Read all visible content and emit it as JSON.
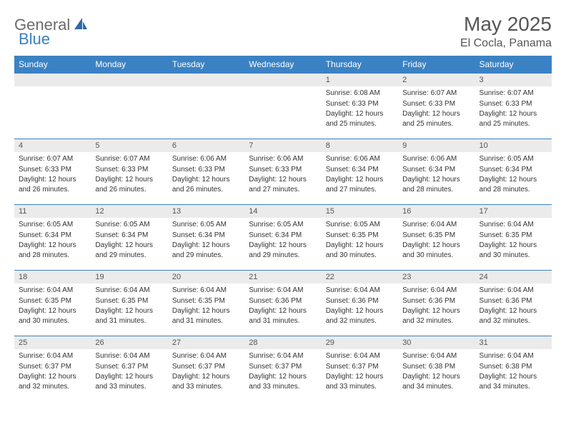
{
  "logo": {
    "text1": "General",
    "text2": "Blue"
  },
  "title": "May 2025",
  "location": "El Cocla, Panama",
  "colors": {
    "header_bg": "#3b82c4",
    "header_text": "#ffffff",
    "daynum_bg": "#ebebeb",
    "border": "#3b82c4",
    "logo_gray": "#6b6b6b",
    "logo_blue": "#3b7fc4"
  },
  "weekdays": [
    "Sunday",
    "Monday",
    "Tuesday",
    "Wednesday",
    "Thursday",
    "Friday",
    "Saturday"
  ],
  "weeks": [
    [
      {
        "n": "",
        "sr": "",
        "ss": "",
        "dl": ""
      },
      {
        "n": "",
        "sr": "",
        "ss": "",
        "dl": ""
      },
      {
        "n": "",
        "sr": "",
        "ss": "",
        "dl": ""
      },
      {
        "n": "",
        "sr": "",
        "ss": "",
        "dl": ""
      },
      {
        "n": "1",
        "sr": "Sunrise: 6:08 AM",
        "ss": "Sunset: 6:33 PM",
        "dl": "Daylight: 12 hours and 25 minutes."
      },
      {
        "n": "2",
        "sr": "Sunrise: 6:07 AM",
        "ss": "Sunset: 6:33 PM",
        "dl": "Daylight: 12 hours and 25 minutes."
      },
      {
        "n": "3",
        "sr": "Sunrise: 6:07 AM",
        "ss": "Sunset: 6:33 PM",
        "dl": "Daylight: 12 hours and 25 minutes."
      }
    ],
    [
      {
        "n": "4",
        "sr": "Sunrise: 6:07 AM",
        "ss": "Sunset: 6:33 PM",
        "dl": "Daylight: 12 hours and 26 minutes."
      },
      {
        "n": "5",
        "sr": "Sunrise: 6:07 AM",
        "ss": "Sunset: 6:33 PM",
        "dl": "Daylight: 12 hours and 26 minutes."
      },
      {
        "n": "6",
        "sr": "Sunrise: 6:06 AM",
        "ss": "Sunset: 6:33 PM",
        "dl": "Daylight: 12 hours and 26 minutes."
      },
      {
        "n": "7",
        "sr": "Sunrise: 6:06 AM",
        "ss": "Sunset: 6:33 PM",
        "dl": "Daylight: 12 hours and 27 minutes."
      },
      {
        "n": "8",
        "sr": "Sunrise: 6:06 AM",
        "ss": "Sunset: 6:34 PM",
        "dl": "Daylight: 12 hours and 27 minutes."
      },
      {
        "n": "9",
        "sr": "Sunrise: 6:06 AM",
        "ss": "Sunset: 6:34 PM",
        "dl": "Daylight: 12 hours and 28 minutes."
      },
      {
        "n": "10",
        "sr": "Sunrise: 6:05 AM",
        "ss": "Sunset: 6:34 PM",
        "dl": "Daylight: 12 hours and 28 minutes."
      }
    ],
    [
      {
        "n": "11",
        "sr": "Sunrise: 6:05 AM",
        "ss": "Sunset: 6:34 PM",
        "dl": "Daylight: 12 hours and 28 minutes."
      },
      {
        "n": "12",
        "sr": "Sunrise: 6:05 AM",
        "ss": "Sunset: 6:34 PM",
        "dl": "Daylight: 12 hours and 29 minutes."
      },
      {
        "n": "13",
        "sr": "Sunrise: 6:05 AM",
        "ss": "Sunset: 6:34 PM",
        "dl": "Daylight: 12 hours and 29 minutes."
      },
      {
        "n": "14",
        "sr": "Sunrise: 6:05 AM",
        "ss": "Sunset: 6:34 PM",
        "dl": "Daylight: 12 hours and 29 minutes."
      },
      {
        "n": "15",
        "sr": "Sunrise: 6:05 AM",
        "ss": "Sunset: 6:35 PM",
        "dl": "Daylight: 12 hours and 30 minutes."
      },
      {
        "n": "16",
        "sr": "Sunrise: 6:04 AM",
        "ss": "Sunset: 6:35 PM",
        "dl": "Daylight: 12 hours and 30 minutes."
      },
      {
        "n": "17",
        "sr": "Sunrise: 6:04 AM",
        "ss": "Sunset: 6:35 PM",
        "dl": "Daylight: 12 hours and 30 minutes."
      }
    ],
    [
      {
        "n": "18",
        "sr": "Sunrise: 6:04 AM",
        "ss": "Sunset: 6:35 PM",
        "dl": "Daylight: 12 hours and 30 minutes."
      },
      {
        "n": "19",
        "sr": "Sunrise: 6:04 AM",
        "ss": "Sunset: 6:35 PM",
        "dl": "Daylight: 12 hours and 31 minutes."
      },
      {
        "n": "20",
        "sr": "Sunrise: 6:04 AM",
        "ss": "Sunset: 6:35 PM",
        "dl": "Daylight: 12 hours and 31 minutes."
      },
      {
        "n": "21",
        "sr": "Sunrise: 6:04 AM",
        "ss": "Sunset: 6:36 PM",
        "dl": "Daylight: 12 hours and 31 minutes."
      },
      {
        "n": "22",
        "sr": "Sunrise: 6:04 AM",
        "ss": "Sunset: 6:36 PM",
        "dl": "Daylight: 12 hours and 32 minutes."
      },
      {
        "n": "23",
        "sr": "Sunrise: 6:04 AM",
        "ss": "Sunset: 6:36 PM",
        "dl": "Daylight: 12 hours and 32 minutes."
      },
      {
        "n": "24",
        "sr": "Sunrise: 6:04 AM",
        "ss": "Sunset: 6:36 PM",
        "dl": "Daylight: 12 hours and 32 minutes."
      }
    ],
    [
      {
        "n": "25",
        "sr": "Sunrise: 6:04 AM",
        "ss": "Sunset: 6:37 PM",
        "dl": "Daylight: 12 hours and 32 minutes."
      },
      {
        "n": "26",
        "sr": "Sunrise: 6:04 AM",
        "ss": "Sunset: 6:37 PM",
        "dl": "Daylight: 12 hours and 33 minutes."
      },
      {
        "n": "27",
        "sr": "Sunrise: 6:04 AM",
        "ss": "Sunset: 6:37 PM",
        "dl": "Daylight: 12 hours and 33 minutes."
      },
      {
        "n": "28",
        "sr": "Sunrise: 6:04 AM",
        "ss": "Sunset: 6:37 PM",
        "dl": "Daylight: 12 hours and 33 minutes."
      },
      {
        "n": "29",
        "sr": "Sunrise: 6:04 AM",
        "ss": "Sunset: 6:37 PM",
        "dl": "Daylight: 12 hours and 33 minutes."
      },
      {
        "n": "30",
        "sr": "Sunrise: 6:04 AM",
        "ss": "Sunset: 6:38 PM",
        "dl": "Daylight: 12 hours and 34 minutes."
      },
      {
        "n": "31",
        "sr": "Sunrise: 6:04 AM",
        "ss": "Sunset: 6:38 PM",
        "dl": "Daylight: 12 hours and 34 minutes."
      }
    ]
  ]
}
